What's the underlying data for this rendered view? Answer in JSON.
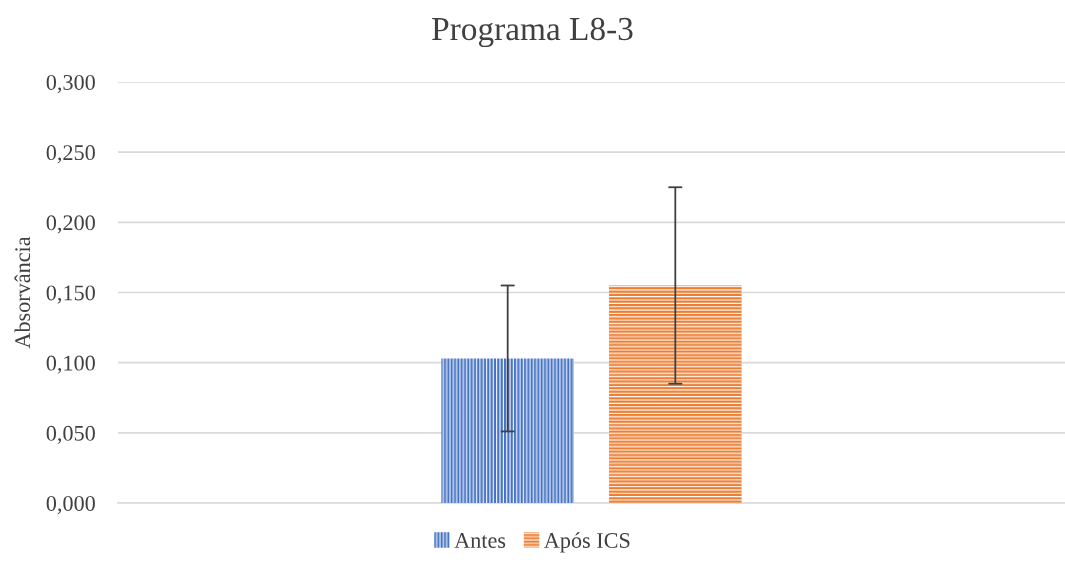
{
  "chart_data": {
    "type": "bar",
    "title": "Programa L8-3",
    "ylabel": "Absorvância",
    "categories": [
      null
    ],
    "series": [
      {
        "name": "Antes",
        "color": "#4472c4",
        "values": [
          0.103
        ],
        "errors": [
          0.052
        ]
      },
      {
        "name": "Após ICS",
        "color": "#ed7d31",
        "values": [
          0.155
        ],
        "errors": [
          0.07
        ]
      }
    ],
    "ylim": [
      0,
      0.3
    ],
    "yticks": [
      {
        "value": 0,
        "label": "0,000"
      },
      {
        "value": 0.05,
        "label": "0,050"
      },
      {
        "value": 0.1,
        "label": "0,100"
      },
      {
        "value": 0.15,
        "label": "0,150"
      },
      {
        "value": 0.2,
        "label": "0,200"
      },
      {
        "value": 0.25,
        "label": "0,250"
      },
      {
        "value": 0.3,
        "label": "0,300"
      }
    ],
    "grid": "y",
    "legend": "bottom"
  }
}
